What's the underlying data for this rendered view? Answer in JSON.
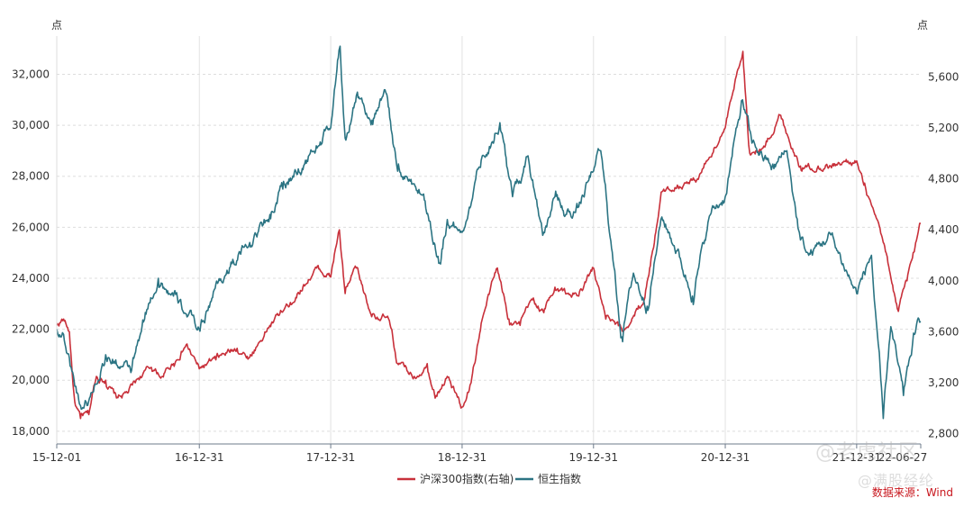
{
  "chart_data": {
    "type": "line",
    "left_unit": "点",
    "right_unit": "点",
    "left_axis": {
      "ylim": [
        17500,
        33500
      ],
      "ticks": [
        18000,
        20000,
        22000,
        24000,
        26000,
        28000,
        30000,
        32000
      ]
    },
    "right_axis": {
      "ylim": [
        2720,
        5920
      ],
      "ticks": [
        2800,
        3200,
        3600,
        4000,
        4400,
        4800,
        5200,
        5600
      ]
    },
    "x_ticks": [
      "15-12-01",
      "16-12-31",
      "17-12-31",
      "18-12-31",
      "19-12-31",
      "20-12-31",
      "21-12-31",
      "22-06-27"
    ],
    "x_range": [
      "2015-12-01",
      "2022-06-27"
    ],
    "grid": "horizontal dashed + vertical at year ends",
    "legend_position": "bottom-center",
    "series": [
      {
        "name": "沪深300指数(右轴)",
        "axis": "right",
        "color": "#c8303a",
        "points": [
          [
            "2015-12-01",
            3650
          ],
          [
            "2015-12-20",
            3700
          ],
          [
            "2016-01-05",
            3600
          ],
          [
            "2016-01-20",
            3050
          ],
          [
            "2016-02-05",
            2920
          ],
          [
            "2016-02-28",
            2950
          ],
          [
            "2016-03-20",
            3250
          ],
          [
            "2016-04-15",
            3220
          ],
          [
            "2016-05-15",
            3080
          ],
          [
            "2016-06-15",
            3120
          ],
          [
            "2016-07-20",
            3250
          ],
          [
            "2016-08-20",
            3320
          ],
          [
            "2016-09-20",
            3250
          ],
          [
            "2016-10-20",
            3350
          ],
          [
            "2016-11-25",
            3500
          ],
          [
            "2016-12-31",
            3310
          ],
          [
            "2017-02-15",
            3380
          ],
          [
            "2017-04-15",
            3470
          ],
          [
            "2017-05-20",
            3400
          ],
          [
            "2017-07-15",
            3650
          ],
          [
            "2017-09-10",
            3830
          ],
          [
            "2017-11-22",
            4100
          ],
          [
            "2017-12-31",
            4030
          ],
          [
            "2018-01-24",
            4400
          ],
          [
            "2018-02-09",
            3900
          ],
          [
            "2018-03-12",
            4100
          ],
          [
            "2018-04-20",
            3750
          ],
          [
            "2018-06-10",
            3700
          ],
          [
            "2018-07-05",
            3350
          ],
          [
            "2018-08-20",
            3250
          ],
          [
            "2018-09-25",
            3350
          ],
          [
            "2018-10-20",
            3100
          ],
          [
            "2018-11-20",
            3250
          ],
          [
            "2018-12-31",
            3010
          ],
          [
            "2019-01-25",
            3200
          ],
          [
            "2019-02-25",
            3700
          ],
          [
            "2019-04-08",
            4100
          ],
          [
            "2019-05-10",
            3700
          ],
          [
            "2019-06-10",
            3650
          ],
          [
            "2019-07-15",
            3850
          ],
          [
            "2019-08-15",
            3750
          ],
          [
            "2019-09-15",
            3950
          ],
          [
            "2019-10-20",
            3900
          ],
          [
            "2019-11-20",
            3880
          ],
          [
            "2019-12-31",
            4100
          ],
          [
            "2020-02-03",
            3700
          ],
          [
            "2020-03-23",
            3600
          ],
          [
            "2020-05-20",
            3850
          ],
          [
            "2020-07-09",
            4700
          ],
          [
            "2020-08-20",
            4750
          ],
          [
            "2020-10-15",
            4800
          ],
          [
            "2020-12-31",
            5200
          ],
          [
            "2021-02-18",
            5800
          ],
          [
            "2021-03-09",
            5000
          ],
          [
            "2021-04-20",
            5050
          ],
          [
            "2021-06-01",
            5300
          ],
          [
            "2021-07-28",
            4900
          ],
          [
            "2021-09-15",
            4900
          ],
          [
            "2021-10-20",
            4900
          ],
          [
            "2021-12-31",
            4940
          ],
          [
            "2022-01-20",
            4750
          ],
          [
            "2022-03-15",
            4300
          ],
          [
            "2022-04-26",
            3760
          ],
          [
            "2022-05-20",
            4000
          ],
          [
            "2022-06-27",
            4450
          ]
        ]
      },
      {
        "name": "恒生指数",
        "axis": "left",
        "color": "#2b7483",
        "points": [
          [
            "2015-12-01",
            22000
          ],
          [
            "2015-12-20",
            21800
          ],
          [
            "2016-01-10",
            20500
          ],
          [
            "2016-02-05",
            19000
          ],
          [
            "2016-02-28",
            19200
          ],
          [
            "2016-04-15",
            21000
          ],
          [
            "2016-06-24",
            20300
          ],
          [
            "2016-08-10",
            22800
          ],
          [
            "2016-09-08",
            24000
          ],
          [
            "2016-10-20",
            23300
          ],
          [
            "2016-11-25",
            22600
          ],
          [
            "2016-12-31",
            22000
          ],
          [
            "2017-02-20",
            23800
          ],
          [
            "2017-05-20",
            25400
          ],
          [
            "2017-07-15",
            26500
          ],
          [
            "2017-08-20",
            27500
          ],
          [
            "2017-10-20",
            28500
          ],
          [
            "2017-12-31",
            29900
          ],
          [
            "2018-01-26",
            33100
          ],
          [
            "2018-02-09",
            29500
          ],
          [
            "2018-03-15",
            31300
          ],
          [
            "2018-04-25",
            30200
          ],
          [
            "2018-06-05",
            31200
          ],
          [
            "2018-07-05",
            28200
          ],
          [
            "2018-08-20",
            27700
          ],
          [
            "2018-09-15",
            27300
          ],
          [
            "2018-10-30",
            24600
          ],
          [
            "2018-11-20",
            26300
          ],
          [
            "2018-12-31",
            25800
          ],
          [
            "2019-02-25",
            28800
          ],
          [
            "2019-04-15",
            30100
          ],
          [
            "2019-05-20",
            27200
          ],
          [
            "2019-07-02",
            28800
          ],
          [
            "2019-08-15",
            25800
          ],
          [
            "2019-09-15",
            27200
          ],
          [
            "2019-10-15",
            26500
          ],
          [
            "2019-11-20",
            26800
          ],
          [
            "2019-12-31",
            28200
          ],
          [
            "2020-01-20",
            29000
          ],
          [
            "2020-03-19",
            21700
          ],
          [
            "2020-04-20",
            24200
          ],
          [
            "2020-05-28",
            22900
          ],
          [
            "2020-07-08",
            26400
          ],
          [
            "2020-08-20",
            25100
          ],
          [
            "2020-10-01",
            23300
          ],
          [
            "2020-11-20",
            26500
          ],
          [
            "2020-12-31",
            27200
          ],
          [
            "2021-02-17",
            31000
          ],
          [
            "2021-03-15",
            29300
          ],
          [
            "2021-05-15",
            28300
          ],
          [
            "2021-06-20",
            29000
          ],
          [
            "2021-07-28",
            25500
          ],
          [
            "2021-08-20",
            24900
          ],
          [
            "2021-10-20",
            25700
          ],
          [
            "2021-12-31",
            23400
          ],
          [
            "2022-02-10",
            24900
          ],
          [
            "2022-03-15",
            18500
          ],
          [
            "2022-04-05",
            22100
          ],
          [
            "2022-05-10",
            19400
          ],
          [
            "2022-06-10",
            21800
          ],
          [
            "2022-06-27",
            22300
          ]
        ]
      }
    ]
  },
  "source": "数据来源：Wind",
  "watermarks": [
    "@老虎社区",
    "@满股经纶"
  ]
}
